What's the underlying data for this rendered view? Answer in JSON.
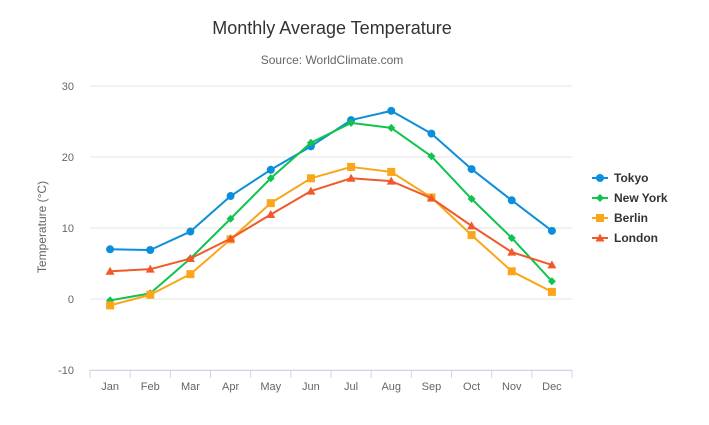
{
  "chart_data": {
    "type": "line",
    "title": "Monthly Average Temperature",
    "subtitle": "Source: WorldClimate.com",
    "ylabel": "Temperature (°C)",
    "xlabel": "",
    "categories": [
      "Jan",
      "Feb",
      "Mar",
      "Apr",
      "May",
      "Jun",
      "Jul",
      "Aug",
      "Sep",
      "Oct",
      "Nov",
      "Dec"
    ],
    "ylim": [
      -10,
      30
    ],
    "yticks": [
      -10,
      0,
      10,
      20,
      30
    ],
    "grid": true,
    "legend_position": "right",
    "series": [
      {
        "name": "Tokyo",
        "color": "#0c8fdb",
        "marker": "circle",
        "values": [
          7.0,
          6.9,
          9.5,
          14.5,
          18.2,
          21.5,
          25.2,
          26.5,
          23.3,
          18.3,
          13.9,
          9.6
        ]
      },
      {
        "name": "New York",
        "color": "#10c34d",
        "marker": "diamond",
        "values": [
          -0.2,
          0.8,
          5.7,
          11.3,
          17.0,
          22.0,
          24.8,
          24.1,
          20.1,
          14.1,
          8.6,
          2.5
        ]
      },
      {
        "name": "Berlin",
        "color": "#f9a61a",
        "marker": "square",
        "values": [
          -0.9,
          0.6,
          3.5,
          8.4,
          13.5,
          17.0,
          18.6,
          17.9,
          14.3,
          9.0,
          3.9,
          1.0
        ]
      },
      {
        "name": "London",
        "color": "#f1592a",
        "marker": "triangle",
        "values": [
          3.9,
          4.2,
          5.7,
          8.5,
          11.9,
          15.2,
          17.0,
          16.6,
          14.2,
          10.3,
          6.6,
          4.8
        ]
      }
    ]
  }
}
